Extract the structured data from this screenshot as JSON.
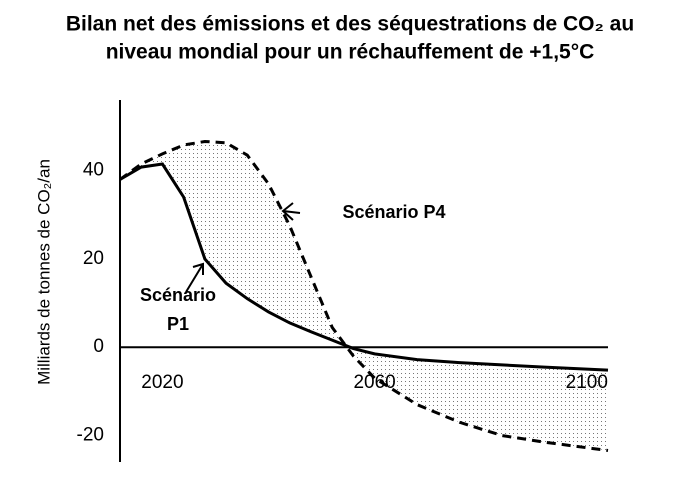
{
  "chart_data": {
    "type": "line",
    "title": [
      "Bilan net des émissions et des séquestrations de CO₂ au",
      "niveau mondial pour un réchauffement de +1,5°C"
    ],
    "y_label": "Milliards de tonnes de CO₂/an",
    "x": [
      2012,
      2016,
      2020,
      2024,
      2028,
      2032,
      2036,
      2040,
      2044,
      2048,
      2052,
      2056,
      2060,
      2068,
      2076,
      2084,
      2092,
      2104
    ],
    "series": [
      {
        "name": "Scénario P1",
        "color": "#000000",
        "dashed": false,
        "values": [
          38,
          40.8,
          41.5,
          34,
          20,
          14.5,
          11,
          8,
          5.5,
          3.5,
          1.6,
          -0.3,
          -1.5,
          -2.8,
          -3.5,
          -4,
          -4.5,
          -5.2
        ]
      },
      {
        "name": "Scénario P4",
        "color": "#000000",
        "dashed": true,
        "values": [
          38,
          41.5,
          43.8,
          45.8,
          46.6,
          46.3,
          43.5,
          37,
          27.5,
          16,
          4.5,
          -2,
          -7,
          -13,
          -17,
          -20,
          -21.5,
          -23.4
        ]
      }
    ],
    "annotations": [
      [
        "Scénario",
        "P1"
      ],
      [
        "Scénario P4"
      ]
    ],
    "xlim": [
      2012,
      2104
    ],
    "xticks": [
      2020,
      2060,
      2100
    ],
    "ylim": [
      -26,
      56
    ],
    "yticks": [
      40,
      20,
      0,
      -20
    ],
    "shade_between": true
  }
}
